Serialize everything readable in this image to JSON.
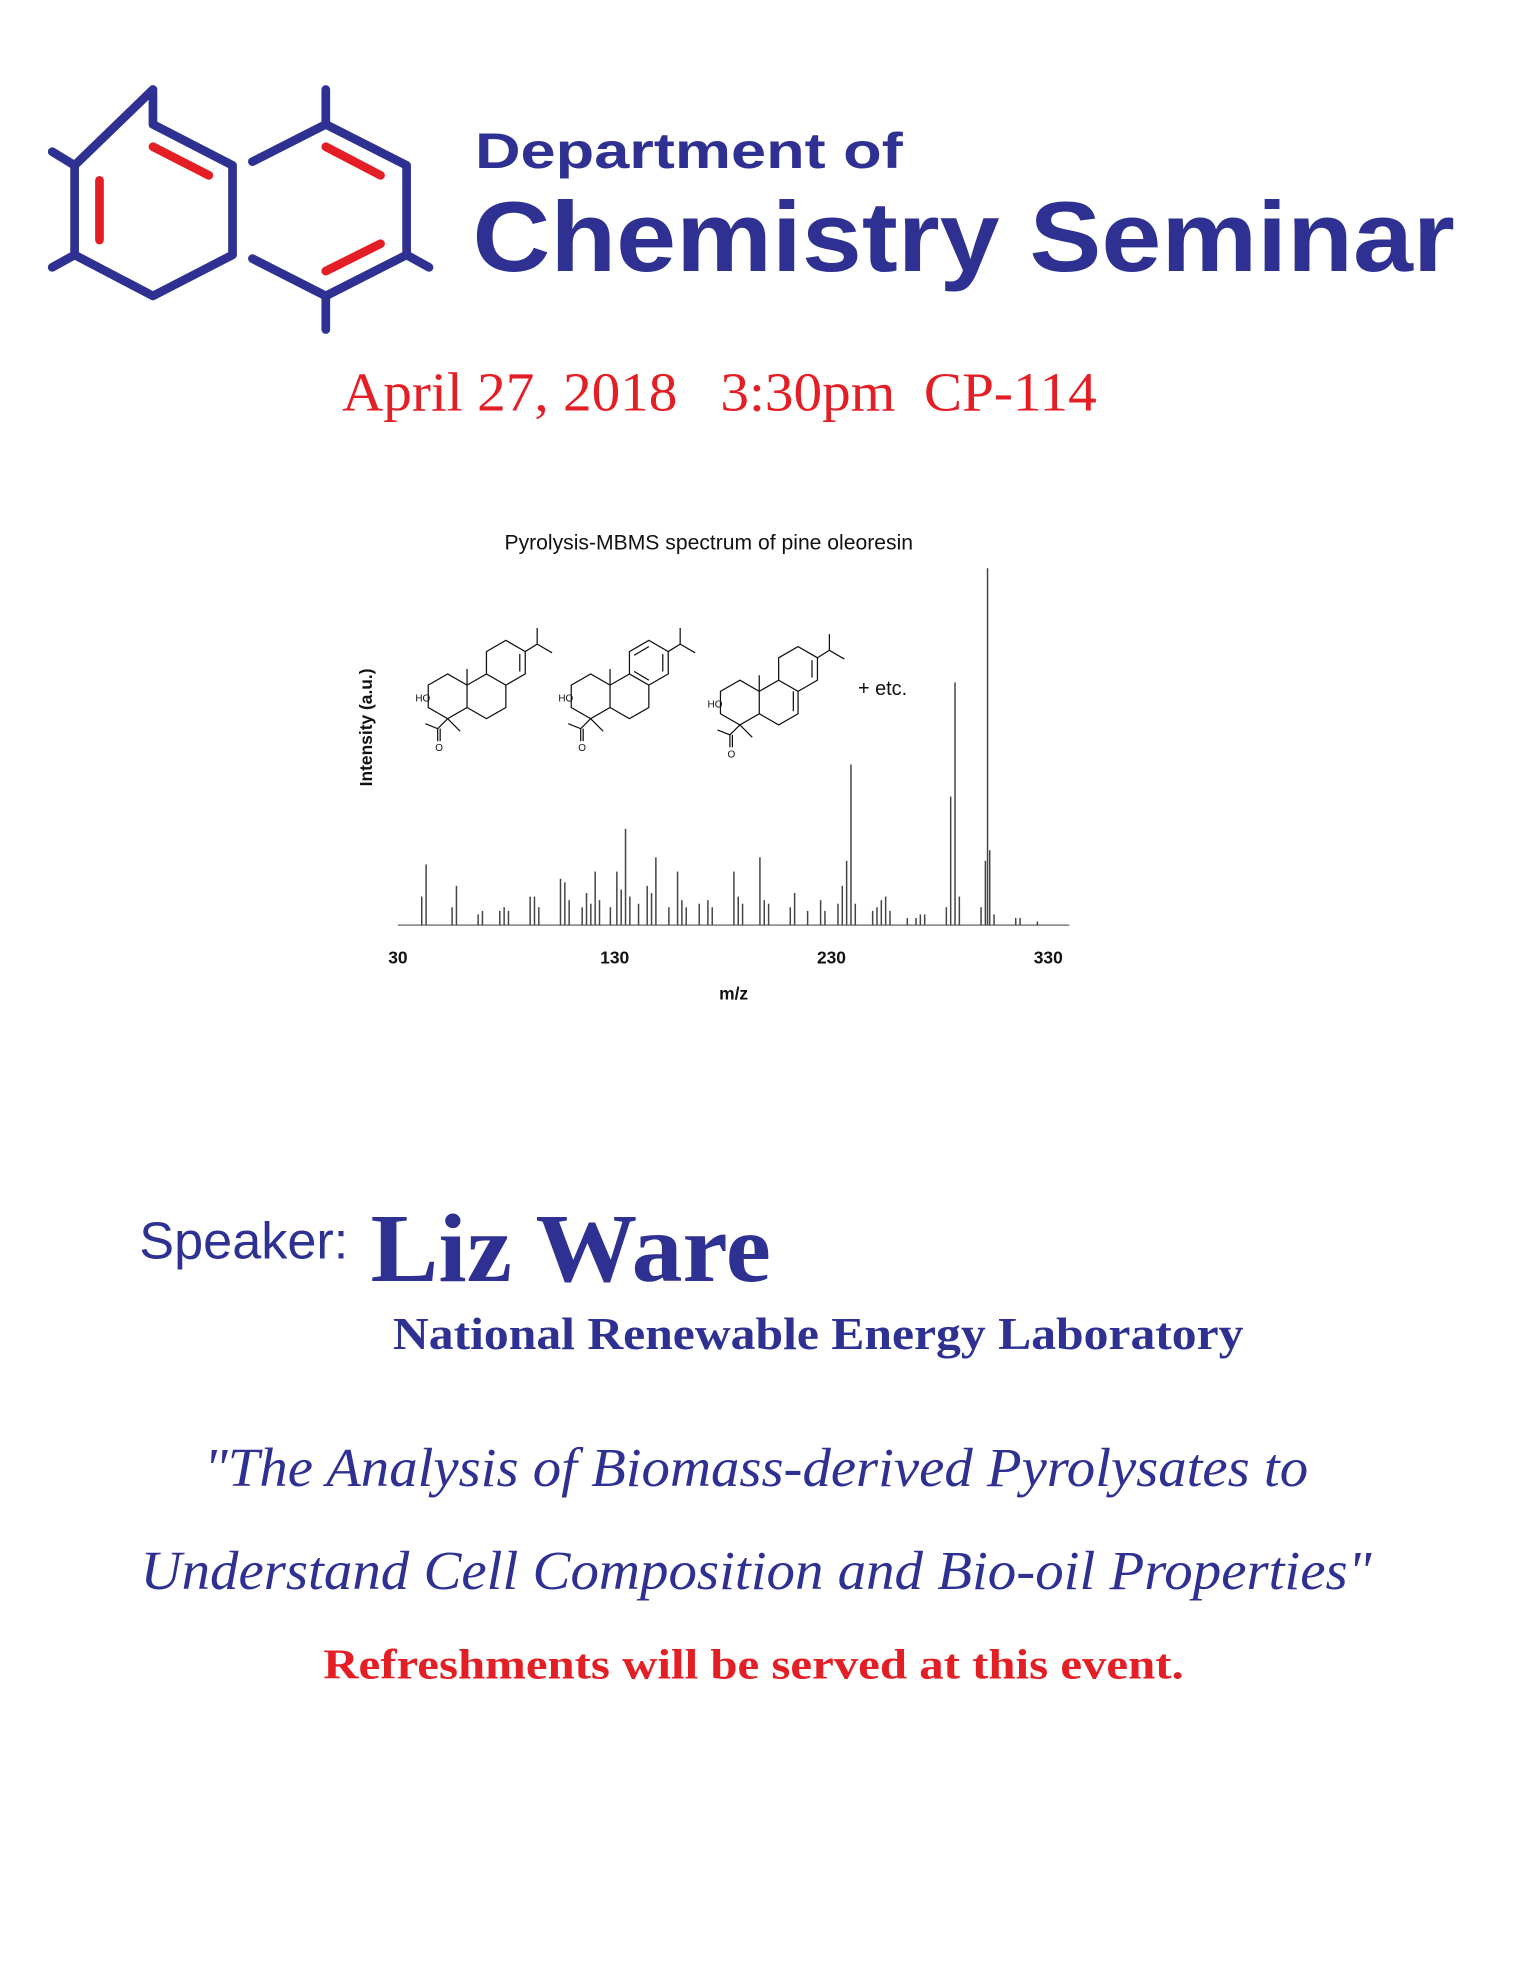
{
  "header": {
    "line1": "Department of",
    "line2": "Chemistry Seminar"
  },
  "event": {
    "when_where": "April 27, 2018   3:30pm  CP-114"
  },
  "chart_data": {
    "type": "spectrum",
    "title": "Pyrolysis-MBMS spectrum of pine oleoresin",
    "x_label": "m/z",
    "y_label": "Intensity (a.u.)",
    "annotation": "+ etc.",
    "structures": [
      {
        "hydroxyl": "HO",
        "oxygen": "O"
      },
      {
        "hydroxyl": "HO",
        "oxygen": "O"
      },
      {
        "hydroxyl": "HO",
        "oxygen": "O"
      }
    ],
    "color": "#444444",
    "xlim": [
      30,
      340
    ],
    "xticks": [
      30,
      130,
      230,
      330
    ],
    "ylim": [
      0,
      100
    ],
    "x": [
      41,
      43,
      55,
      57,
      67,
      69,
      77,
      79,
      81,
      91,
      93,
      95,
      105,
      107,
      109,
      115,
      117,
      119,
      121,
      123,
      128,
      131,
      133,
      135,
      137,
      141,
      145,
      147,
      149,
      155,
      159,
      161,
      163,
      169,
      173,
      175,
      185,
      187,
      189,
      197,
      199,
      201,
      211,
      213,
      219,
      225,
      227,
      233,
      235,
      237,
      239,
      241,
      249,
      251,
      253,
      255,
      257,
      265,
      269,
      271,
      273,
      283,
      285,
      287,
      289,
      299,
      301,
      302,
      303,
      305,
      315,
      317,
      325
    ],
    "values": [
      8,
      17,
      5,
      11,
      3,
      4,
      4,
      5,
      4,
      8,
      8,
      5,
      13,
      12,
      7,
      5,
      9,
      6,
      15,
      7,
      5,
      15,
      10,
      27,
      8,
      6,
      11,
      9,
      19,
      5,
      15,
      7,
      5,
      6,
      7,
      5,
      15,
      8,
      6,
      19,
      7,
      6,
      5,
      9,
      4,
      7,
      4,
      6,
      11,
      18,
      45,
      6,
      4,
      5,
      7,
      8,
      4,
      2,
      2,
      3,
      3,
      5,
      36,
      68,
      8,
      5,
      18,
      100,
      21,
      3,
      2,
      2,
      1
    ]
  },
  "speaker": {
    "label": "Speaker:",
    "name": "Liz Ware",
    "affiliation": "National Renewable Energy Laboratory"
  },
  "talk": {
    "title_line1": "\"The Analysis of Biomass-derived Pyrolysates to",
    "title_line2": "Understand Cell Composition and Bio-oil Properties\""
  },
  "note": "Refreshments will be served at this event."
}
